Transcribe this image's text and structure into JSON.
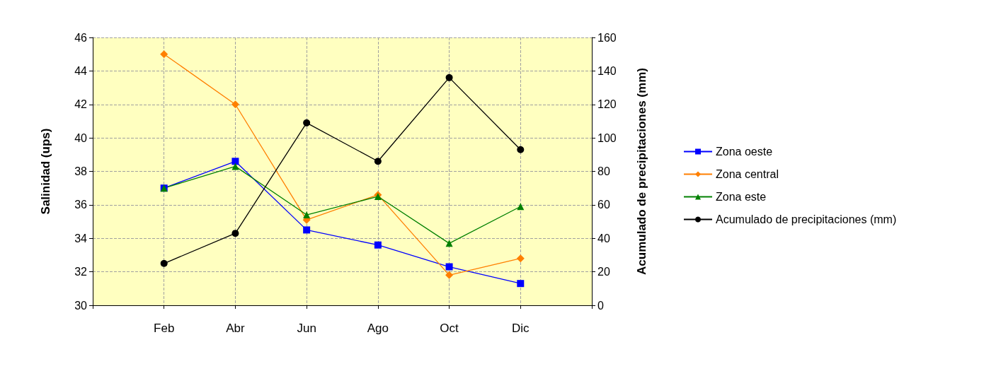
{
  "chart_data": {
    "type": "line",
    "categories": [
      null,
      "Feb",
      "Abr",
      "Jun",
      "Ago",
      "Oct",
      "Dic",
      null
    ],
    "ylabel": "Salinidad (ups)",
    "y2label": "Acumulado de precipitaciones (mm)",
    "ylim": [
      30,
      46
    ],
    "yticks": [
      30,
      32,
      34,
      36,
      38,
      40,
      42,
      44,
      46
    ],
    "y2lim": [
      0,
      160
    ],
    "y2ticks": [
      0,
      20,
      40,
      60,
      80,
      100,
      120,
      140,
      160
    ],
    "grid": true,
    "legend": "right",
    "series": [
      {
        "name": "Zona oeste",
        "color": "#0000ff",
        "marker": "square",
        "values": [
          null,
          37.0,
          38.6,
          34.5,
          33.6,
          32.3,
          31.3,
          null
        ]
      },
      {
        "name": "Zona central",
        "color": "#ff7f00",
        "marker": "diamond",
        "values": [
          null,
          45.0,
          42.0,
          35.1,
          36.6,
          31.8,
          32.8,
          null
        ]
      },
      {
        "name": "Zona este",
        "color": "#008000",
        "marker": "triangle",
        "values": [
          null,
          37.0,
          38.3,
          35.4,
          36.5,
          33.7,
          35.9,
          null
        ]
      },
      {
        "name": "Acumulado de precipitaciones (mm)",
        "color": "#000000",
        "marker": "circle",
        "axis": "y2",
        "values": [
          null,
          25,
          43,
          109,
          86,
          136,
          93,
          null
        ]
      }
    ]
  }
}
